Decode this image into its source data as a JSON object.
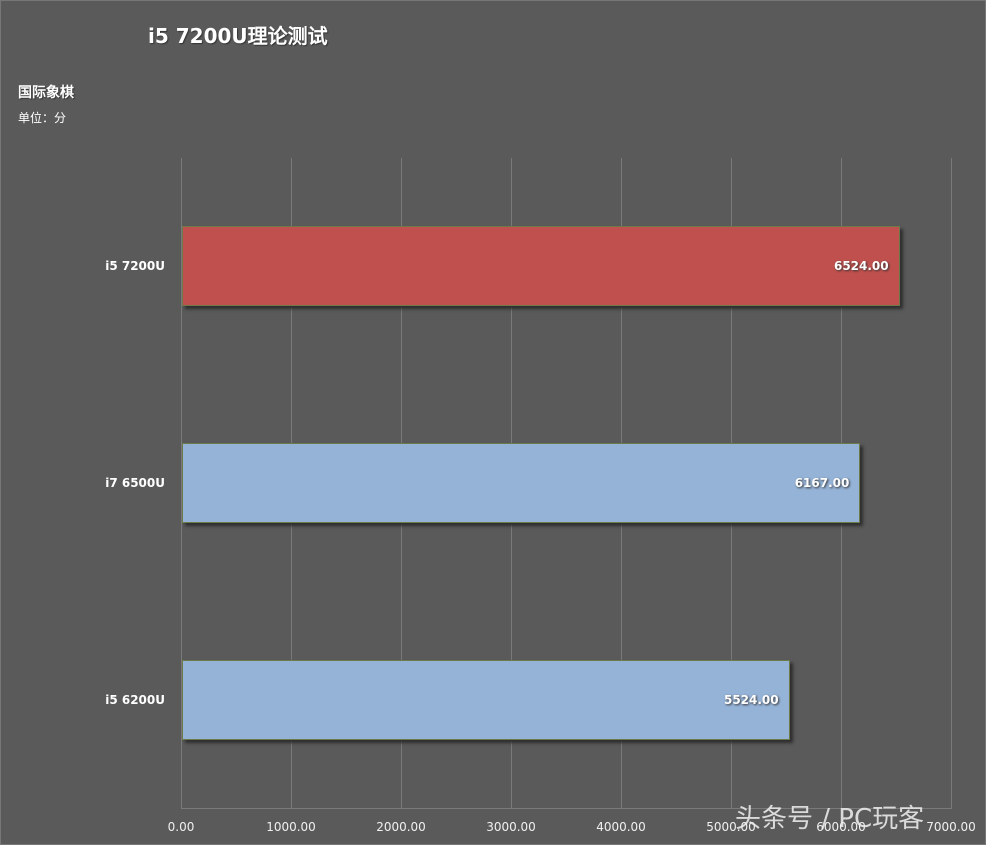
{
  "chart_data": {
    "type": "bar",
    "orientation": "horizontal",
    "title": "i5 7200U理论测试",
    "subtitle": "国际象棋",
    "unit_label": "单位：分",
    "categories": [
      "i5 7200U",
      "i7 6500U",
      "i5 6200U"
    ],
    "values": [
      6524.0,
      6167.0,
      5524.0
    ],
    "value_labels": [
      "6524.00",
      "6167.00",
      "5524.00"
    ],
    "bar_colors": [
      "#c0504d",
      "#95b3d7",
      "#95b3d7"
    ],
    "xlabel": "",
    "ylabel": "",
    "xlim": [
      0,
      7000
    ],
    "x_ticks": [
      "0.00",
      "1000.00",
      "2000.00",
      "3000.00",
      "4000.00",
      "5000.00",
      "6000.00",
      "7000.00"
    ],
    "grid": true,
    "legend": false
  },
  "watermark": "头条号 / PC玩客"
}
